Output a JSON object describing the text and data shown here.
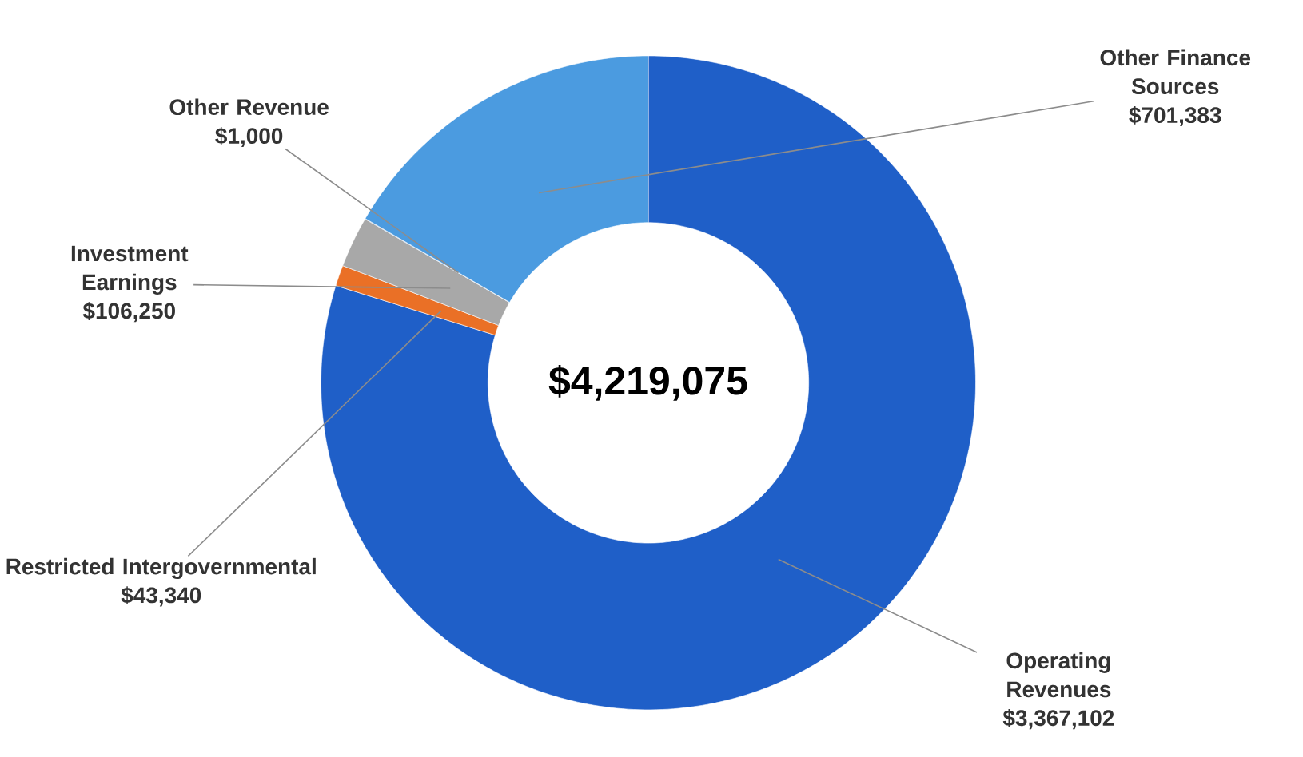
{
  "chart_data": {
    "type": "donut",
    "categories": [
      "Operating Revenues",
      "Restricted Intergovernmental",
      "Investment Earnings",
      "Other Revenue",
      "Other Finance Sources"
    ],
    "values": [
      3367102,
      43340,
      106250,
      1000,
      701383
    ],
    "value_labels": [
      "$3,367,102",
      "$43,340",
      "$106,250",
      "$1,000",
      "$701,383"
    ],
    "colors": [
      "#1f5fc8",
      "#ea7026",
      "#a8a8a8",
      "#5b7fb5",
      "#4b9be0"
    ],
    "annotations": [
      "$4,219,075"
    ]
  }
}
